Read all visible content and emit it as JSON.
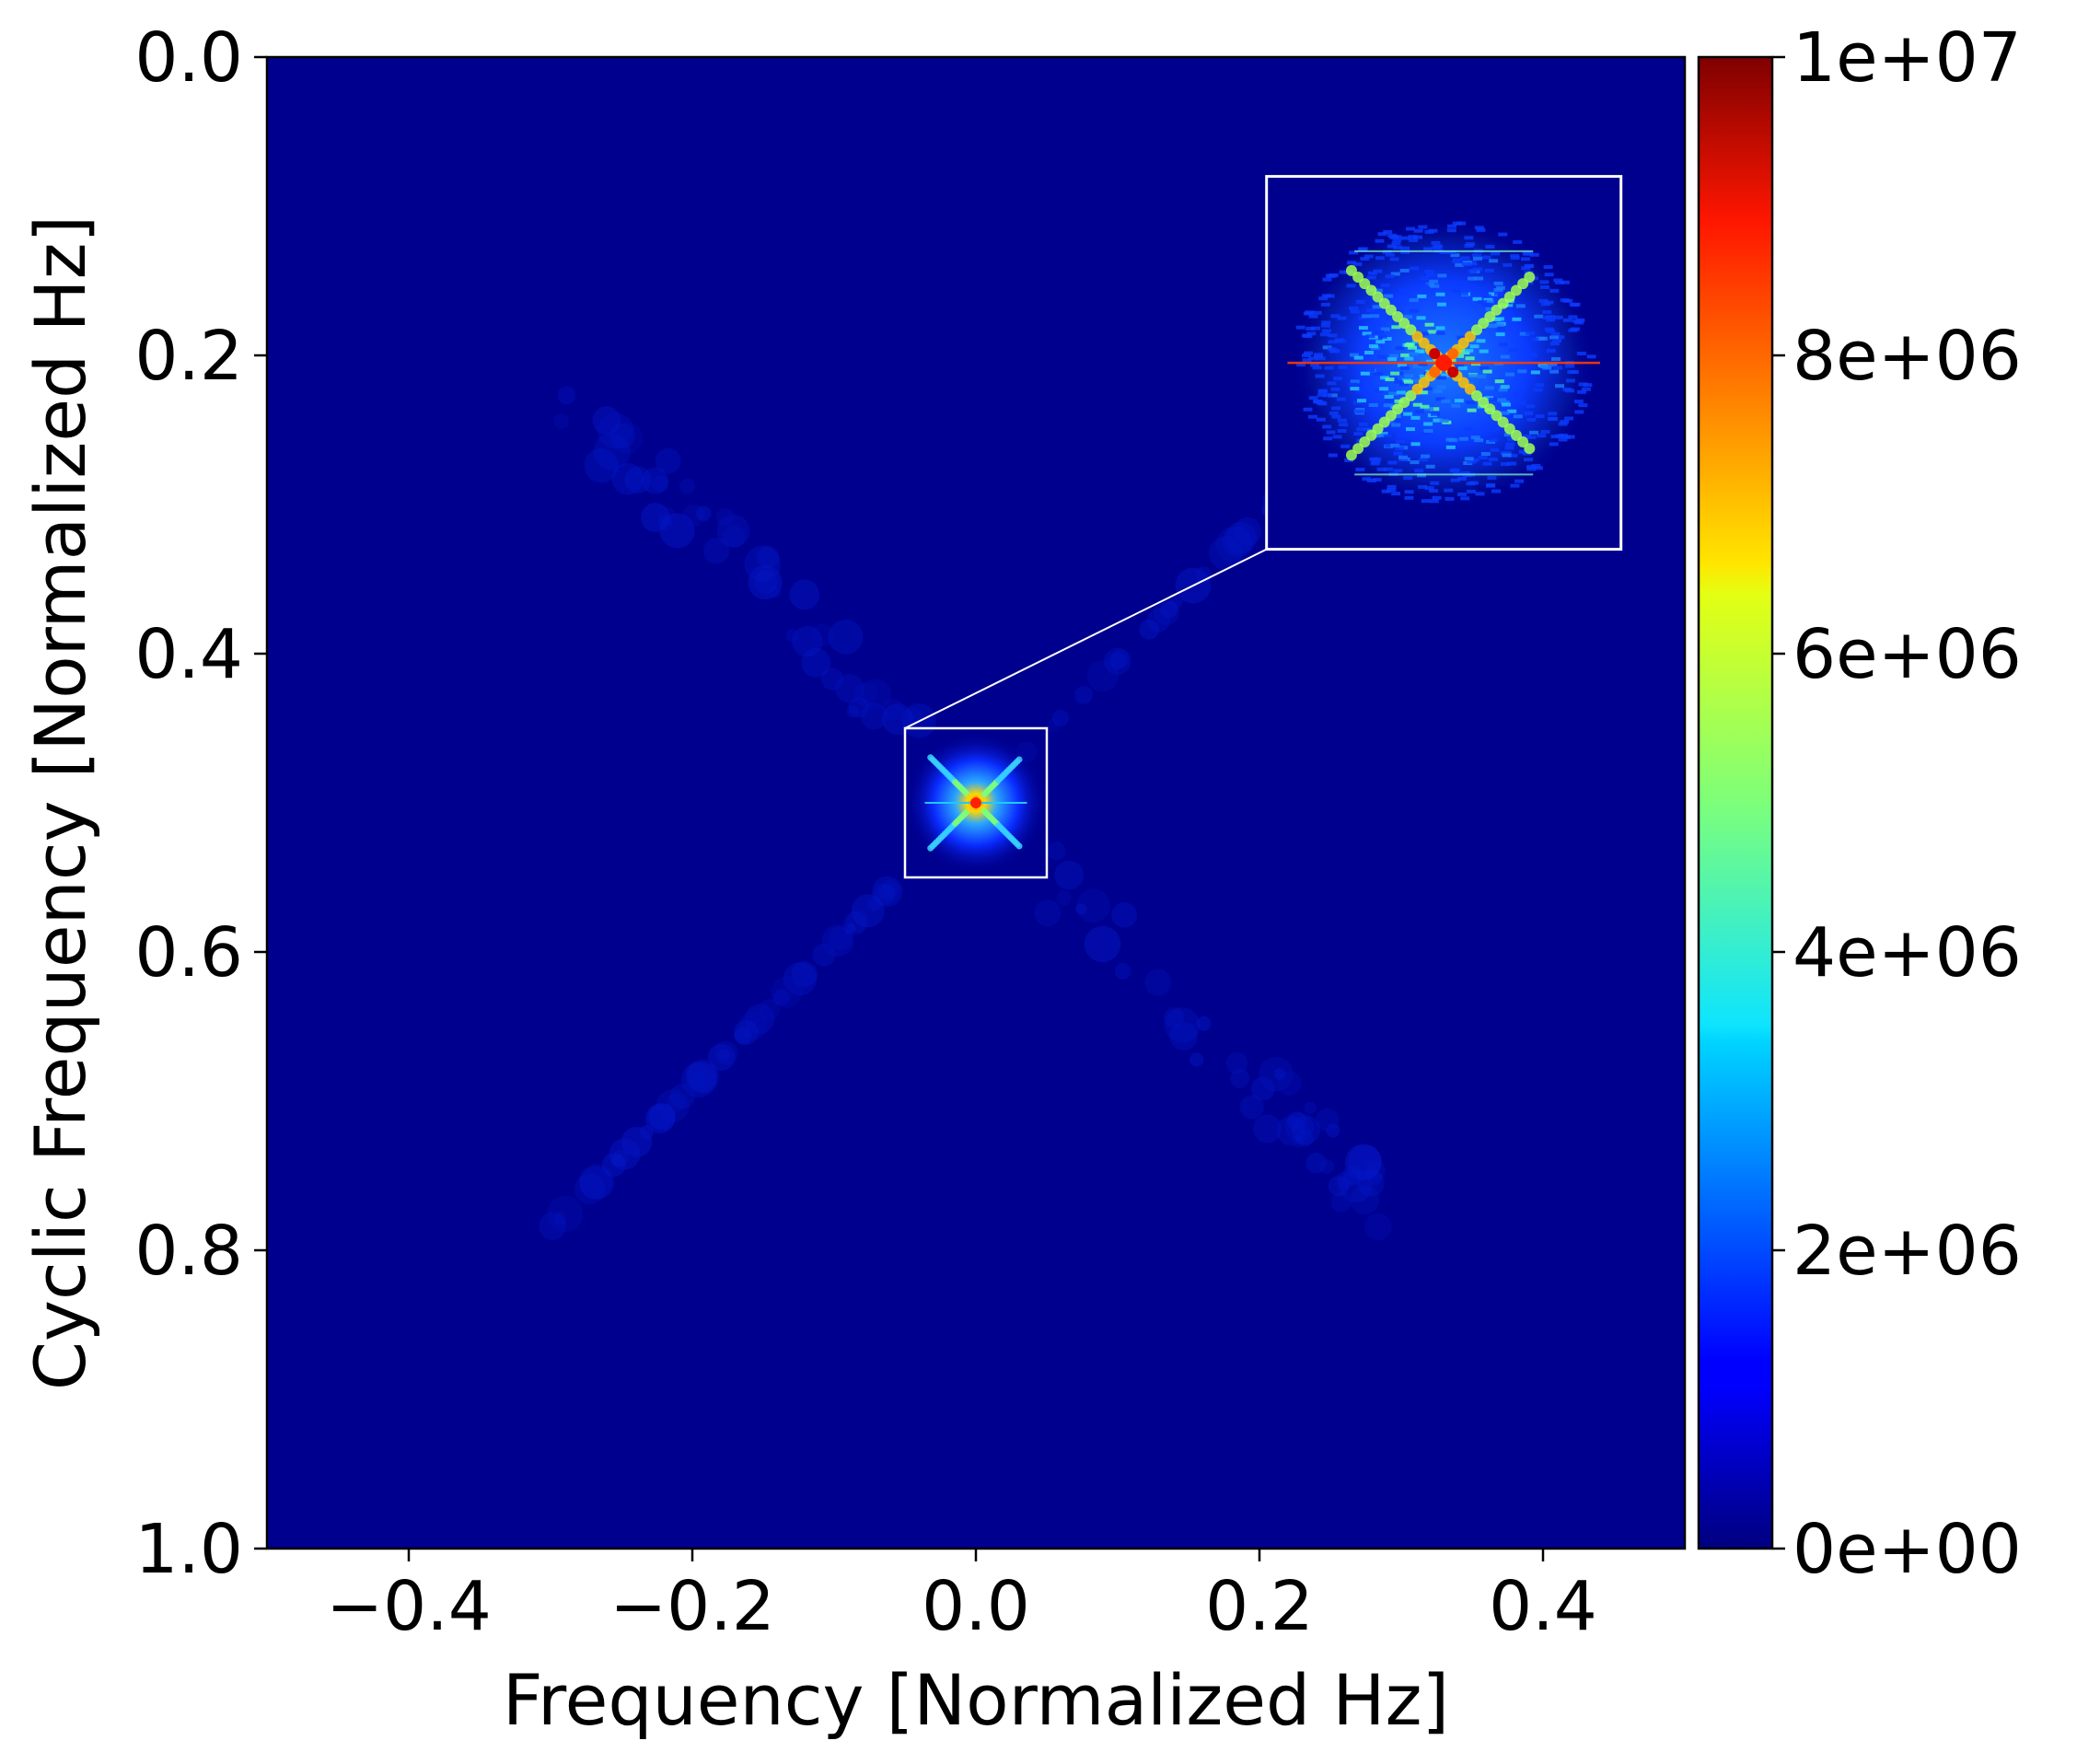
{
  "chart_data": {
    "type": "heatmap",
    "title": "",
    "xlabel": "Frequency [Normalized Hz]",
    "ylabel": "Cyclic Frequency [Normalized Hz]",
    "xlim": [
      -0.5,
      0.5
    ],
    "ylim": [
      0.0,
      1.0
    ],
    "y_inverted": true,
    "x_ticks": [
      {
        "value": -0.4,
        "label": "−0.4"
      },
      {
        "value": -0.2,
        "label": "−0.2"
      },
      {
        "value": 0.0,
        "label": "0.0"
      },
      {
        "value": 0.2,
        "label": "0.2"
      },
      {
        "value": 0.4,
        "label": "0.4"
      }
    ],
    "y_ticks": [
      {
        "value": 0.0,
        "label": "0.0"
      },
      {
        "value": 0.2,
        "label": "0.2"
      },
      {
        "value": 0.4,
        "label": "0.4"
      },
      {
        "value": 0.6,
        "label": "0.6"
      },
      {
        "value": 0.8,
        "label": "0.8"
      },
      {
        "value": 1.0,
        "label": "1.0"
      }
    ],
    "colormap": "jet",
    "colorbar": {
      "range": [
        0,
        10000000
      ],
      "ticks": [
        {
          "value": 0,
          "label": "0e+00"
        },
        {
          "value": 2000000,
          "label": "2e+06"
        },
        {
          "value": 4000000,
          "label": "4e+06"
        },
        {
          "value": 6000000,
          "label": "6e+06"
        },
        {
          "value": 8000000,
          "label": "8e+06"
        },
        {
          "value": 10000000,
          "label": "1e+07"
        }
      ]
    },
    "background_value": 0,
    "hotspot": {
      "frequency": 0.0,
      "cyclic_frequency": 0.5,
      "peak_value": 10000000
    },
    "zoom_region": {
      "frequency": [
        -0.05,
        0.05
      ],
      "cyclic_frequency": [
        0.45,
        0.55
      ]
    },
    "inset": {
      "frequency": [
        0.205,
        0.455
      ],
      "cyclic_frequency": [
        0.08,
        0.33
      ]
    },
    "grid": false
  }
}
